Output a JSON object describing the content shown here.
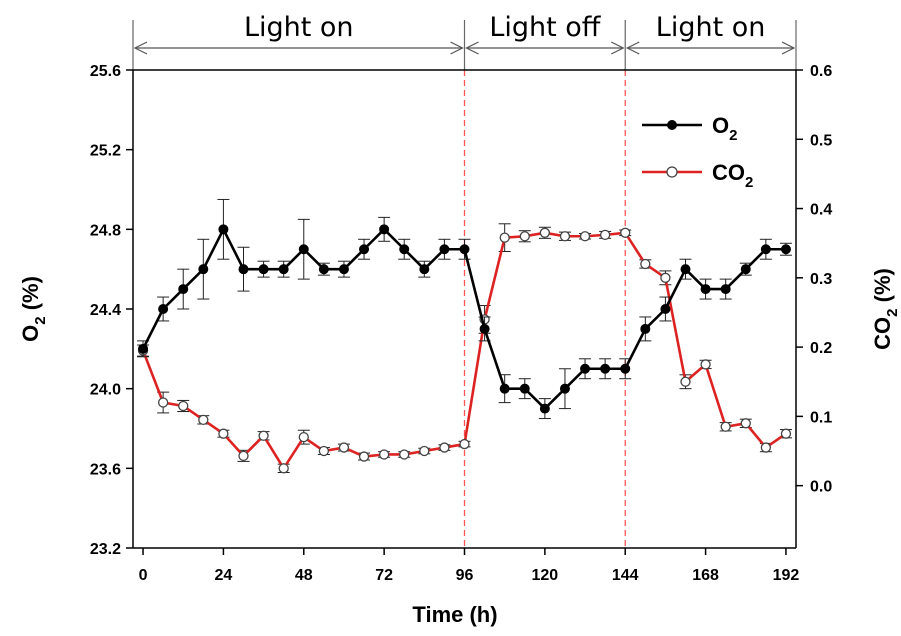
{
  "chart_data": {
    "type": "line",
    "xlabel": "Time (h)",
    "ylabel_left": {
      "main": "O",
      "sub": "2",
      "rest": " (%)"
    },
    "ylabel_right": {
      "main": "CO",
      "sub": "2",
      "rest": " (%)"
    },
    "xlim": [
      -3,
      195
    ],
    "ylim_left": [
      23.2,
      25.6
    ],
    "ylim_right": [
      -0.09,
      0.6
    ],
    "xticks": [
      "0",
      "24",
      "48",
      "72",
      "96",
      "120",
      "144",
      "168",
      "192"
    ],
    "yticks_left": [
      "23.2",
      "23.6",
      "24.0",
      "24.4",
      "24.8",
      "25.2",
      "25.6"
    ],
    "yticks_right": [
      "0.0",
      "0.1",
      "0.2",
      "0.3",
      "0.4",
      "0.5",
      "0.6"
    ],
    "phases": [
      {
        "label": "Light on",
        "start": 0,
        "end": 96
      },
      {
        "label": "Light off",
        "start": 96,
        "end": 144
      },
      {
        "label": "Light on",
        "start": 144,
        "end": 192
      }
    ],
    "boundaries": [
      96,
      144
    ],
    "series": [
      {
        "name": "O2",
        "legend": {
          "main": "O",
          "sub": "2"
        },
        "axis": "left",
        "color": "#000000",
        "marker": "filled-circle",
        "x": [
          0,
          6,
          12,
          18,
          24,
          30,
          36,
          42,
          48,
          54,
          60,
          66,
          72,
          78,
          84,
          90,
          96,
          102,
          108,
          114,
          120,
          126,
          132,
          138,
          144,
          150,
          156,
          162,
          168,
          174,
          180,
          186,
          192
        ],
        "y": [
          24.2,
          24.4,
          24.5,
          24.6,
          24.8,
          24.6,
          24.6,
          24.6,
          24.7,
          24.6,
          24.6,
          24.7,
          24.8,
          24.7,
          24.6,
          24.7,
          24.7,
          24.3,
          24.0,
          24.0,
          23.9,
          24.0,
          24.1,
          24.1,
          24.1,
          24.3,
          24.4,
          24.6,
          24.5,
          24.5,
          24.6,
          24.7,
          24.7
        ],
        "err": [
          0.04,
          0.06,
          0.1,
          0.15,
          0.15,
          0.11,
          0.04,
          0.04,
          0.15,
          0.03,
          0.04,
          0.05,
          0.06,
          0.05,
          0.04,
          0.05,
          0.05,
          0.06,
          0.07,
          0.05,
          0.05,
          0.1,
          0.05,
          0.05,
          0.05,
          0.06,
          0.06,
          0.05,
          0.05,
          0.05,
          0.03,
          0.05,
          0.03
        ]
      },
      {
        "name": "CO2",
        "legend": {
          "main": "CO",
          "sub": "2"
        },
        "axis": "right",
        "color": "#dd2222",
        "marker": "open-circle",
        "x": [
          0,
          6,
          12,
          18,
          24,
          30,
          36,
          42,
          48,
          54,
          60,
          66,
          72,
          78,
          84,
          90,
          96,
          102,
          108,
          114,
          120,
          126,
          132,
          138,
          144,
          150,
          156,
          162,
          168,
          174,
          180,
          186,
          192
        ],
        "y": [
          0.195,
          0.12,
          0.115,
          0.095,
          0.075,
          0.043,
          0.072,
          0.025,
          0.07,
          0.05,
          0.055,
          0.042,
          0.045,
          0.045,
          0.05,
          0.055,
          0.06,
          0.24,
          0.358,
          0.36,
          0.365,
          0.36,
          0.36,
          0.362,
          0.365,
          0.32,
          0.3,
          0.15,
          0.175,
          0.085,
          0.09,
          0.055,
          0.075
        ],
        "err": [
          0.008,
          0.015,
          0.008,
          0.006,
          0.005,
          0.008,
          0.006,
          0.006,
          0.01,
          0.005,
          0.005,
          0.005,
          0.004,
          0.004,
          0.004,
          0.004,
          0.004,
          0.02,
          0.02,
          0.008,
          0.008,
          0.006,
          0.004,
          0.005,
          0.004,
          0.006,
          0.01,
          0.01,
          0.006,
          0.006,
          0.006,
          0.006,
          0.006
        ]
      }
    ]
  }
}
